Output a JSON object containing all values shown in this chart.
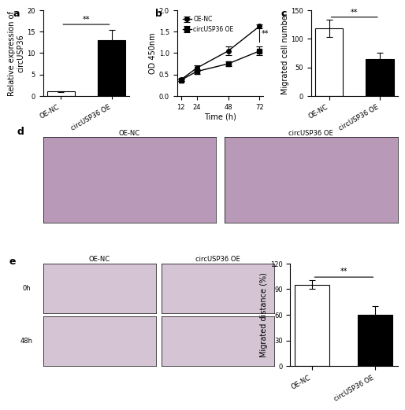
{
  "panel_a": {
    "categories": [
      "OE-NC",
      "circUSP36 OE"
    ],
    "values": [
      1.0,
      13.0
    ],
    "errors": [
      0.1,
      2.5
    ],
    "bar_colors": [
      "white",
      "black"
    ],
    "ylabel": "Relative expression of\ncircUSP36",
    "ylim": [
      0,
      20
    ],
    "yticks": [
      0,
      5,
      10,
      15,
      20
    ],
    "sig_text": "**",
    "title": "a"
  },
  "panel_b": {
    "time": [
      12,
      24,
      48,
      72
    ],
    "oe_nc": [
      0.38,
      0.65,
      1.05,
      1.63
    ],
    "oe_nc_err": [
      0.03,
      0.06,
      0.1,
      0.05
    ],
    "circ_oe": [
      0.37,
      0.57,
      0.75,
      1.05
    ],
    "circ_oe_err": [
      0.02,
      0.05,
      0.05,
      0.1
    ],
    "ylabel": "OD 450nm",
    "xlabel": "Time (h)",
    "ylim": [
      0.0,
      2.0
    ],
    "yticks": [
      0.0,
      0.5,
      1.0,
      1.5,
      2.0
    ],
    "xticks": [
      12,
      24,
      48,
      72
    ],
    "sig_text": "**",
    "legend": [
      "OE-NC",
      "circUSP36 OE"
    ],
    "title": "b"
  },
  "panel_c": {
    "categories": [
      "OE-NC",
      "circUSP36 OE"
    ],
    "values": [
      118.0,
      65.0
    ],
    "errors": [
      15.0,
      10.0
    ],
    "bar_colors": [
      "white",
      "black"
    ],
    "ylabel": "Migrated cell number",
    "ylim": [
      0,
      150
    ],
    "yticks": [
      0,
      50,
      100,
      150
    ],
    "sig_text": "**",
    "title": "c"
  },
  "panel_e_bar": {
    "categories": [
      "OE-NC",
      "circUSP36 OE"
    ],
    "values": [
      95.0,
      60.0
    ],
    "errors": [
      5.0,
      10.0
    ],
    "bar_colors": [
      "white",
      "black"
    ],
    "ylabel": "Migrated distance (%)",
    "ylim": [
      0,
      120
    ],
    "yticks": [
      0,
      30,
      60,
      90,
      120
    ],
    "sig_text": "**",
    "title": "e"
  },
  "image_placeholder_color": "#c8a0c8",
  "edge_color": "black",
  "sig_color": "black",
  "label_fontsize": 7,
  "tick_fontsize": 6,
  "title_fontsize": 9
}
